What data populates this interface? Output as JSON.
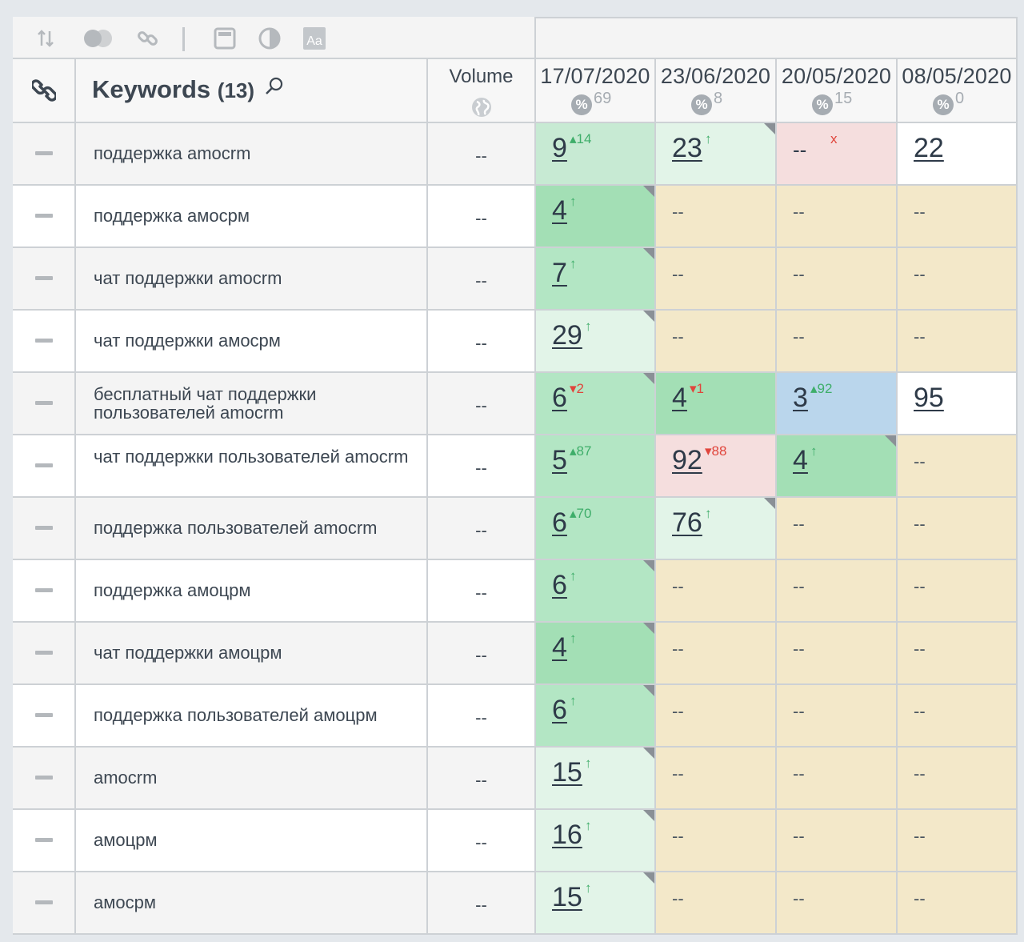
{
  "toolbar": {
    "icons": [
      "sort-icon",
      "toggle-icon",
      "link-icon",
      "layout-icon",
      "contrast-icon",
      "font-icon"
    ]
  },
  "header": {
    "keywords_label": "Keywords",
    "keywords_count": "(13)",
    "volume_label": "Volume",
    "dates": [
      {
        "date": "17/07/2020",
        "pct": "%",
        "count": "69"
      },
      {
        "date": "23/06/2020",
        "pct": "%",
        "count": "8"
      },
      {
        "date": "20/05/2020",
        "pct": "%",
        "count": "15"
      },
      {
        "date": "08/05/2020",
        "pct": "%",
        "count": "0"
      }
    ]
  },
  "rows": [
    {
      "keyword": "поддержка amocrm",
      "volume": "--",
      "cells": [
        {
          "v": "9",
          "d": "▴14",
          "t": "g",
          "bg": "pale"
        },
        {
          "v": "23",
          "d": "↑",
          "t": "g",
          "bg": "light",
          "corner": true
        },
        {
          "v": "--",
          "d": "x",
          "t": "r",
          "bg": "pink"
        },
        {
          "v": "22",
          "d": "",
          "t": "",
          "bg": "white"
        }
      ]
    },
    {
      "keyword": "поддержка амосрм",
      "volume": "--",
      "cells": [
        {
          "v": "4",
          "d": "↑",
          "t": "g",
          "bg": "dark",
          "corner": true
        },
        {
          "v": "--",
          "bg": "sand"
        },
        {
          "v": "--",
          "bg": "sand"
        },
        {
          "v": "--",
          "bg": "sand"
        }
      ]
    },
    {
      "keyword": "чат поддержки amocrm",
      "volume": "--",
      "cells": [
        {
          "v": "7",
          "d": "↑",
          "t": "g",
          "bg": "mid",
          "corner": true
        },
        {
          "v": "--",
          "bg": "sand"
        },
        {
          "v": "--",
          "bg": "sand"
        },
        {
          "v": "--",
          "bg": "sand"
        }
      ]
    },
    {
      "keyword": "чат поддержки амосрм",
      "volume": "--",
      "cells": [
        {
          "v": "29",
          "d": "↑",
          "t": "g",
          "bg": "light",
          "corner": true
        },
        {
          "v": "--",
          "bg": "sand"
        },
        {
          "v": "--",
          "bg": "sand"
        },
        {
          "v": "--",
          "bg": "sand"
        }
      ]
    },
    {
      "keyword": "бесплатный чат поддержки пользователей amocrm",
      "volume": "--",
      "cells": [
        {
          "v": "6",
          "d": "▾2",
          "t": "r",
          "bg": "mid",
          "corner": true
        },
        {
          "v": "4",
          "d": "▾1",
          "t": "r",
          "bg": "dark"
        },
        {
          "v": "3",
          "d": "▴92",
          "t": "g",
          "bg": "blue"
        },
        {
          "v": "95",
          "d": "",
          "t": "",
          "bg": "white"
        }
      ]
    },
    {
      "keyword": "чат поддержки пользователей amocrm",
      "volume": "--",
      "cells": [
        {
          "v": "5",
          "d": "▴87",
          "t": "g",
          "bg": "mid"
        },
        {
          "v": "92",
          "d": "▾88",
          "t": "r",
          "bg": "pink"
        },
        {
          "v": "4",
          "d": "↑",
          "t": "g",
          "bg": "dark",
          "corner": true
        },
        {
          "v": "--",
          "bg": "sand"
        }
      ]
    },
    {
      "keyword": "поддержка пользователей amocrm",
      "volume": "--",
      "cells": [
        {
          "v": "6",
          "d": "▴70",
          "t": "g",
          "bg": "mid"
        },
        {
          "v": "76",
          "d": "↑",
          "t": "g",
          "bg": "light",
          "corner": true
        },
        {
          "v": "--",
          "bg": "sand"
        },
        {
          "v": "--",
          "bg": "sand"
        }
      ]
    },
    {
      "keyword": "поддержка амоцрм",
      "volume": "--",
      "cells": [
        {
          "v": "6",
          "d": "↑",
          "t": "g",
          "bg": "mid",
          "corner": true
        },
        {
          "v": "--",
          "bg": "sand"
        },
        {
          "v": "--",
          "bg": "sand"
        },
        {
          "v": "--",
          "bg": "sand"
        }
      ]
    },
    {
      "keyword": "чат поддержки амоцрм",
      "volume": "--",
      "cells": [
        {
          "v": "4",
          "d": "↑",
          "t": "g",
          "bg": "dark",
          "corner": true
        },
        {
          "v": "--",
          "bg": "sand"
        },
        {
          "v": "--",
          "bg": "sand"
        },
        {
          "v": "--",
          "bg": "sand"
        }
      ]
    },
    {
      "keyword": "поддержка пользователей амоцрм",
      "volume": "--",
      "cells": [
        {
          "v": "6",
          "d": "↑",
          "t": "g",
          "bg": "mid",
          "corner": true
        },
        {
          "v": "--",
          "bg": "sand"
        },
        {
          "v": "--",
          "bg": "sand"
        },
        {
          "v": "--",
          "bg": "sand"
        }
      ]
    },
    {
      "keyword": "amocrm",
      "volume": "--",
      "cells": [
        {
          "v": "15",
          "d": "↑",
          "t": "g",
          "bg": "light",
          "corner": true
        },
        {
          "v": "--",
          "bg": "sand"
        },
        {
          "v": "--",
          "bg": "sand"
        },
        {
          "v": "--",
          "bg": "sand"
        }
      ]
    },
    {
      "keyword": "амоцрм",
      "volume": "--",
      "cells": [
        {
          "v": "16",
          "d": "↑",
          "t": "g",
          "bg": "light",
          "corner": true
        },
        {
          "v": "--",
          "bg": "sand"
        },
        {
          "v": "--",
          "bg": "sand"
        },
        {
          "v": "--",
          "bg": "sand"
        }
      ]
    },
    {
      "keyword": "амосрм",
      "volume": "--",
      "cells": [
        {
          "v": "15",
          "d": "↑",
          "t": "g",
          "bg": "light",
          "corner": true
        },
        {
          "v": "--",
          "bg": "sand"
        },
        {
          "v": "--",
          "bg": "sand"
        },
        {
          "v": "--",
          "bg": "sand"
        }
      ]
    }
  ]
}
